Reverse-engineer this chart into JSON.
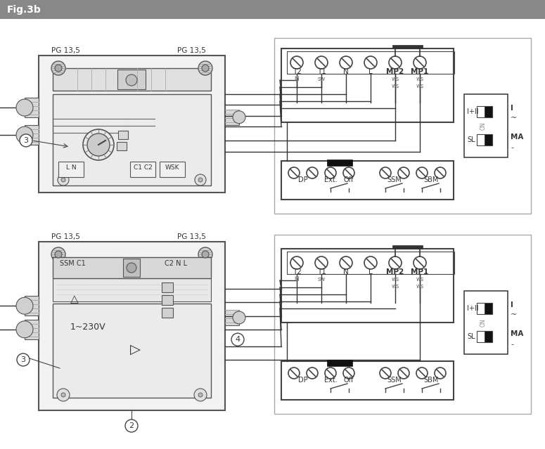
{
  "title": "Fig.3b",
  "title_bg": "#888888",
  "title_fg": "#ffffff",
  "bg_color": "#ffffff",
  "lc": "#333333",
  "top_panel": {
    "pg_left": "PG 13,5",
    "pg_right": "PG 13,5",
    "top_labels": [
      "T2",
      "T1",
      "N",
      "L",
      "MP2",
      "MP1"
    ],
    "top_sublabels": [
      "bl",
      "sw",
      "",
      "",
      "ws",
      "ws"
    ],
    "inner_labels": [
      "L N",
      "C1 C2",
      "WSK"
    ]
  },
  "bottom_panel": {
    "pg_left": "PG 13,5",
    "pg_right": "PG 13,5",
    "inner_labels": [
      "SSM C1",
      "C2 N L"
    ],
    "voltage": "1~230V"
  },
  "wiring_labels_top": [
    "DP",
    "Ext.",
    "Off",
    "SSM",
    "SBM"
  ],
  "wiring_labels_bottom": [
    "DP",
    "Ext.",
    "Off",
    "SSM",
    "SBM"
  ],
  "switch_labels_top": [
    "I+II",
    "SL"
  ],
  "switch_labels_right": [
    "I",
    "~",
    "MA",
    "-"
  ]
}
